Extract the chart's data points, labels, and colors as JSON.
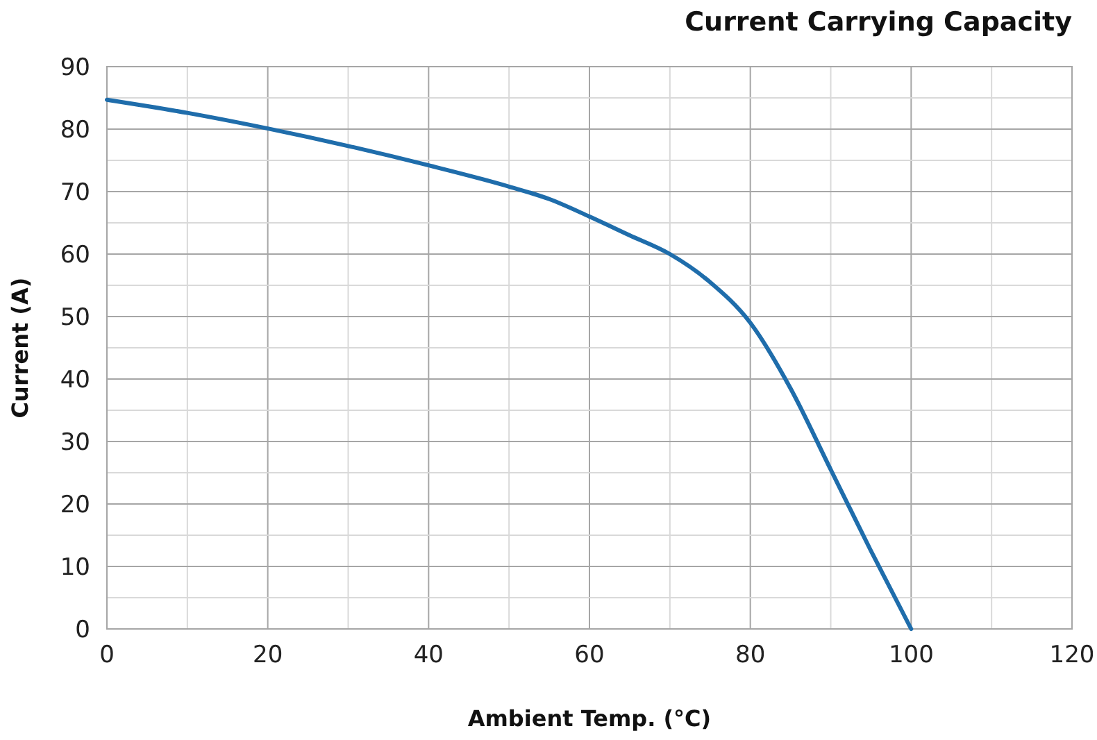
{
  "chart_data": {
    "type": "line",
    "title": "Current Carrying Capacity",
    "xlabel": "Ambient Temp.  (°C)",
    "ylabel": "Current   (A)",
    "x": [
      0,
      10,
      20,
      30,
      40,
      50,
      55,
      60,
      65,
      70,
      75,
      80,
      85,
      90,
      95,
      100
    ],
    "series": [
      {
        "color": "#1f6dab",
        "values": [
          84.7,
          82.6,
          80.1,
          77.3,
          74.2,
          70.8,
          68.8,
          66,
          63,
          60,
          55.5,
          49,
          38.5,
          25.5,
          12.5,
          0
        ]
      }
    ],
    "xlim": [
      0,
      120
    ],
    "ylim": [
      0,
      90
    ],
    "xticks": [
      0,
      {
        "value": 10,
        "label": null
      },
      20,
      {
        "value": 30,
        "label": null
      },
      40,
      {
        "value": 50,
        "label": null
      },
      60,
      {
        "value": 70,
        "label": null
      },
      80,
      {
        "value": 90,
        "label": null
      },
      100,
      {
        "value": 110,
        "label": null
      },
      120
    ],
    "yticks": [
      0,
      {
        "value": 5,
        "label": null
      },
      10,
      {
        "value": 15,
        "label": null
      },
      20,
      {
        "value": 25,
        "label": null
      },
      30,
      {
        "value": 35,
        "label": null
      },
      40,
      {
        "value": 45,
        "label": null
      },
      50,
      {
        "value": 55,
        "label": null
      },
      60,
      {
        "value": 65,
        "label": null
      },
      70,
      {
        "value": 75,
        "label": null
      },
      80,
      {
        "value": 85,
        "label": null
      },
      90
    ],
    "grid": true,
    "marker": "none",
    "line_style": "solid"
  }
}
